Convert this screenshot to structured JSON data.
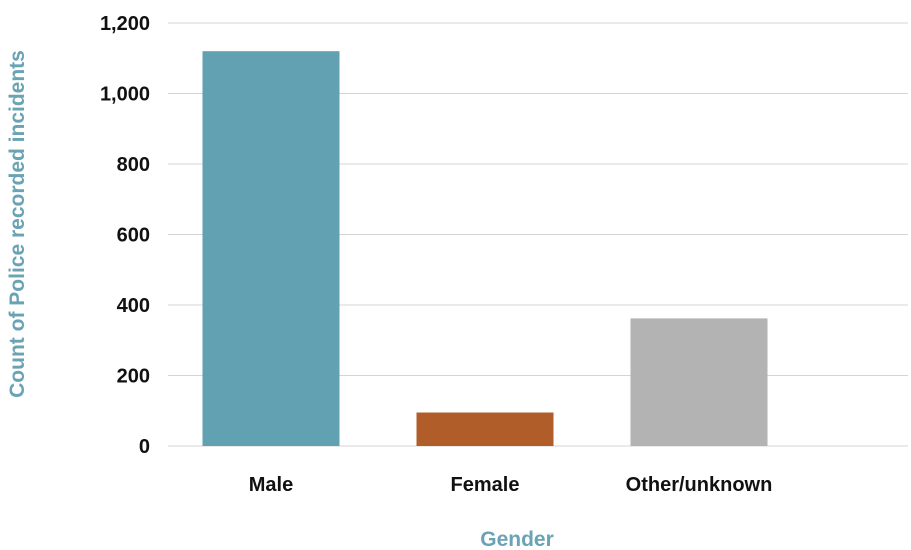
{
  "chart_data": {
    "type": "bar",
    "title": "",
    "xlabel": "Gender",
    "ylabel": "Count of Police recorded incidents",
    "categories": [
      "Male",
      "Female",
      "Other/unknown"
    ],
    "values": [
      1120,
      95,
      362
    ],
    "ylim": [
      0,
      1200
    ],
    "yticks": [
      0,
      200,
      400,
      600,
      800,
      1000,
      1200
    ],
    "ytick_labels": [
      "0",
      "200",
      "400",
      "600",
      "800",
      "1,000",
      "1,200"
    ],
    "grid": true,
    "legend": "none",
    "colors": {
      "bars": [
        "#62a1b1",
        "#b05d2a",
        "#b3b3b3"
      ],
      "axis_title": "#6aa3b4",
      "gridline": "#d4d4d4"
    }
  }
}
